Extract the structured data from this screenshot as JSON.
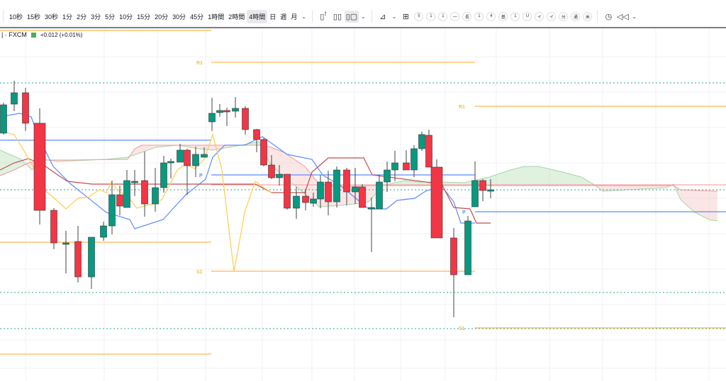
{
  "toolbar": {
    "timeframes": [
      "10秒",
      "15秒",
      "30秒",
      "1分",
      "2分",
      "3分",
      "5分",
      "10分",
      "15分",
      "20分",
      "30分",
      "45分",
      "1時間",
      "2時間",
      "4時間",
      "日",
      "週",
      "月"
    ],
    "active_timeframe": "4時間",
    "icons": [
      "bar-chart-icon",
      "candle-chart-icon",
      "hollow-candle-icon",
      "indicators-icon",
      "layout-grid-icon",
      "alert-add-icon",
      "replay-icon"
    ],
    "badges": [
      "5",
      "1",
      "1",
      "一",
      "長",
      "1",
      "4",
      "基",
      "1",
      "U",
      "イ",
      "イ",
      "分",
      "通",
      "米"
    ]
  },
  "legend": {
    "source": "| · FXCM",
    "change": "+0.012 (+0.01%)",
    "flag_color": "#4caf50"
  },
  "chart_data": {
    "type": "candlestick",
    "note_units": "",
    "colors": {
      "up": "#089981",
      "down": "#f23645",
      "pivot_r_s": "#ffb74d",
      "pivot_p": "#5b8cff",
      "tenkan": "#5b8cff",
      "kijun": "#c0504d",
      "chikou": "#ffcc4d",
      "cloud_up": "#a5d6a7",
      "cloud_down": "#f4b6b6",
      "dotted": "#26a69a"
    },
    "candles": [
      [
        350,
        393,
        348,
        390
      ],
      [
        391,
        424,
        381,
        407
      ],
      [
        407,
        414,
        353,
        364
      ],
      [
        364,
        385,
        221,
        241
      ],
      [
        241,
        244,
        186,
        195
      ],
      [
        195,
        212,
        152,
        195
      ],
      [
        197,
        219,
        139,
        147
      ],
      [
        147,
        203,
        130,
        203
      ],
      [
        203,
        225,
        198,
        219
      ],
      [
        219,
        283,
        207,
        263
      ],
      [
        263,
        276,
        234,
        247
      ],
      [
        245,
        298,
        245,
        283
      ],
      [
        282,
        298,
        261,
        282
      ],
      [
        283,
        324,
        232,
        250
      ],
      [
        250,
        301,
        239,
        273
      ],
      [
        273,
        318,
        266,
        308
      ],
      [
        310,
        314,
        286,
        310
      ],
      [
        309,
        335,
        309,
        326
      ],
      [
        326,
        328,
        263,
        304
      ],
      [
        304,
        331,
        288,
        320
      ],
      [
        316,
        330,
        316,
        320
      ],
      [
        366,
        400,
        353,
        378
      ],
      [
        379,
        391,
        373,
        382
      ],
      [
        382,
        386,
        360,
        380
      ],
      [
        381,
        401,
        372,
        385
      ],
      [
        385,
        388,
        348,
        355
      ],
      [
        355,
        356,
        323,
        341
      ],
      [
        341,
        343,
        303,
        305
      ],
      [
        305,
        319,
        285,
        287
      ],
      [
        287,
        305,
        276,
        292
      ],
      [
        292,
        292,
        242,
        244
      ],
      [
        244,
        274,
        229,
        261
      ],
      [
        261,
        271,
        241,
        252
      ],
      [
        251,
        266,
        246,
        257
      ],
      [
        257,
        291,
        244,
        281
      ],
      [
        281,
        297,
        234,
        253
      ],
      [
        253,
        303,
        245,
        298
      ],
      [
        298,
        301,
        248,
        267
      ],
      [
        267,
        301,
        250,
        274
      ],
      [
        274,
        278,
        245,
        245
      ],
      [
        245,
        259,
        182,
        245
      ],
      [
        243,
        291,
        243,
        281
      ],
      [
        281,
        310,
        267,
        298
      ],
      [
        298,
        325,
        282,
        308
      ],
      [
        308,
        326,
        299,
        298
      ],
      [
        298,
        333,
        288,
        328
      ],
      [
        328,
        352,
        325,
        348
      ],
      [
        347,
        355,
        302,
        302
      ],
      [
        302,
        313,
        202,
        202
      ],
      [
        202,
        216,
        90,
        150
      ],
      [
        150,
        233,
        150,
        226
      ],
      [
        246,
        310,
        246,
        283
      ],
      [
        283,
        285,
        254,
        269
      ],
      [
        270,
        285,
        258,
        270
      ]
    ],
    "pivot_levels": [
      {
        "label": "R1",
        "segment": 2
      },
      {
        "label": "S1",
        "segment": 2
      },
      {
        "label": "P",
        "segment": 2
      },
      {
        "label": "R1",
        "segment": 3
      },
      {
        "label": "S1",
        "segment": 3
      },
      {
        "label": "P",
        "segment": 3
      }
    ]
  }
}
